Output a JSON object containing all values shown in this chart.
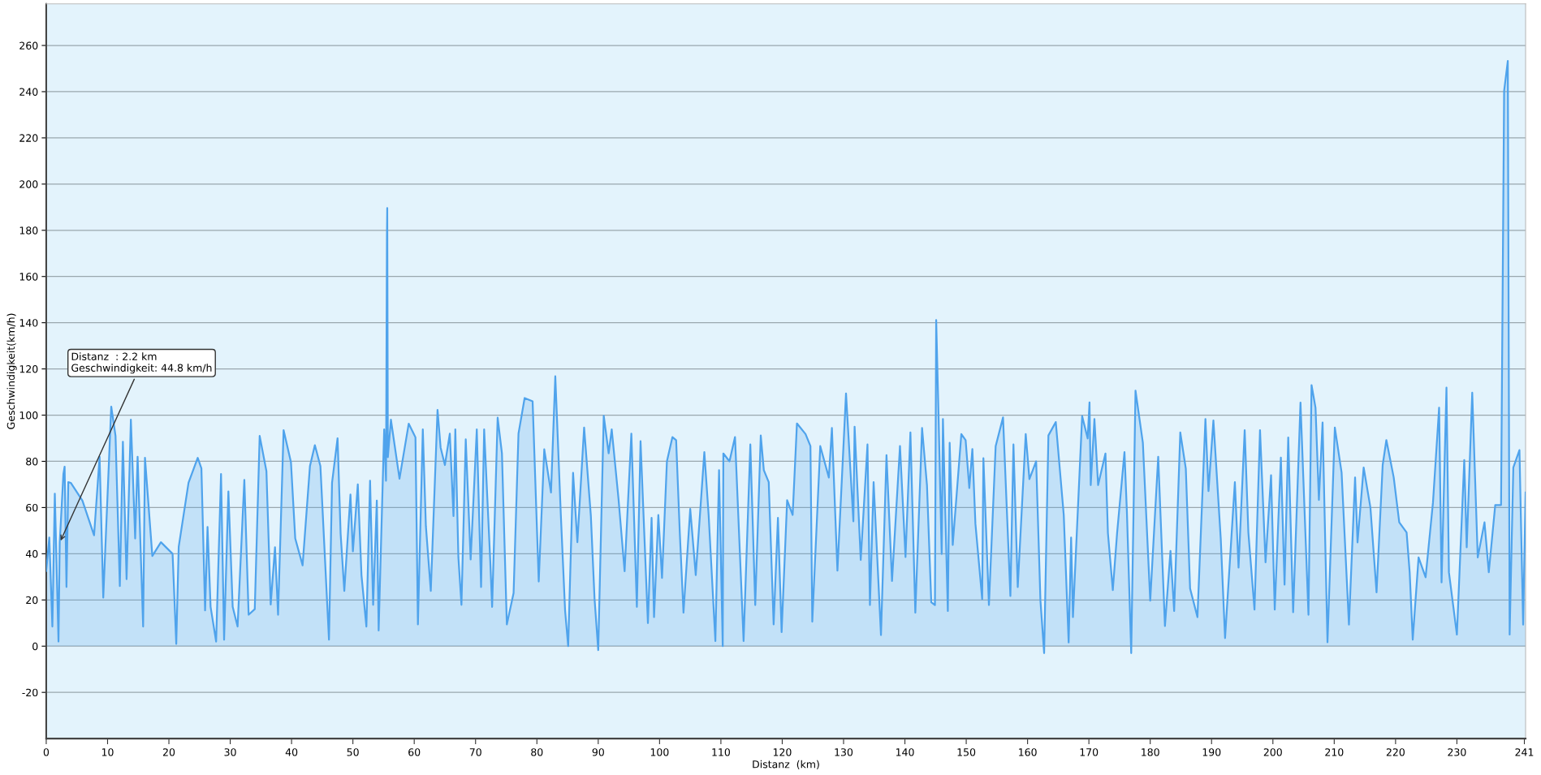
{
  "chart_data": {
    "type": "area",
    "xlabel": "Distanz  (km)",
    "ylabel": "Geschwindigkeit(km/h)",
    "xlim": [
      0,
      241.2
    ],
    "xticks": [
      0,
      10,
      20,
      30,
      40,
      50,
      60,
      70,
      80,
      90,
      100,
      110,
      120,
      130,
      140,
      150,
      160,
      170,
      180,
      190,
      200,
      210,
      220,
      230,
      241
    ],
    "ylim": [
      -40,
      278
    ],
    "yticks": [
      -20,
      0,
      20,
      40,
      60,
      80,
      100,
      120,
      140,
      160,
      180,
      200,
      220,
      240,
      260
    ],
    "grid": "y",
    "annotations": [
      {
        "text": "Distanz  : 2.2 km\nGeschwindigkeit: 44.8 km/h",
        "x": 2.2,
        "y": 44.8
      }
    ],
    "series": [
      {
        "color": "#4fa3ec",
        "x": [
          0,
          0.5,
          1.0,
          1.4,
          2.0,
          2.2,
          2.8,
          3.0,
          3.3,
          3.6,
          4.0,
          5.9,
          7.8,
          8.7,
          9.3,
          10.6,
          11.3,
          12.0,
          12.5,
          13.1,
          13.8,
          14.5,
          14.9,
          15.8,
          16.1,
          17.3,
          18.7,
          20.6,
          21.2,
          21.6,
          23.2,
          24.7,
          25.3,
          25.9,
          26.3,
          26.8,
          27.7,
          28.5,
          29.0,
          29.7,
          30.4,
          31.2,
          32.3,
          33.0,
          34.0,
          34.8,
          35.9,
          36.6,
          37.3,
          37.8,
          38.7,
          39.9,
          40.6,
          41.8,
          43.0,
          43.8,
          44.7,
          46.1,
          46.6,
          47.5,
          48.0,
          48.6,
          49.6,
          50.0,
          50.8,
          51.4,
          52.2,
          52.8,
          53.3,
          53.9,
          54.2,
          55.1,
          55.4,
          55.55,
          55.6,
          55.7,
          56.2,
          57.6,
          59.1,
          60.2,
          60.6,
          61.4,
          61.9,
          62.7,
          63.8,
          64.3,
          65.0,
          65.8,
          66.4,
          66.7,
          67.2,
          67.7,
          68.4,
          69.2,
          70.2,
          70.9,
          71.4,
          72.4,
          72.7,
          73.6,
          74.3,
          75.1,
          76.2,
          77.0,
          78.0,
          79.3,
          80.3,
          81.2,
          82.3,
          83.0,
          83.9,
          84.6,
          85.1,
          85.9,
          86.6,
          87.7,
          88.8,
          89.4,
          90.0,
          90.9,
          91.7,
          92.2,
          93.3,
          94.3,
          95.4,
          96.3,
          96.9,
          98.1,
          98.7,
          99.1,
          99.8,
          100.4,
          101.2,
          102.1,
          102.7,
          103.3,
          103.9,
          105.0,
          105.9,
          107.3,
          108.0,
          109.1,
          109.7,
          110.3,
          110.4,
          111.4,
          112.3,
          113.7,
          114.8,
          115.6,
          116.5,
          117.0,
          117.8,
          118.6,
          119.3,
          119.9,
          120.8,
          121.7,
          122.4,
          123.8,
          124.6,
          124.9,
          126.2,
          127.6,
          128.1,
          129.0,
          130.4,
          131.6,
          131.8,
          132.8,
          133.9,
          134.3,
          134.9,
          136.1,
          137.0,
          137.9,
          139.2,
          140.1,
          140.9,
          141.7,
          142.8,
          143.6,
          144.3,
          144.9,
          145.1,
          145.5,
          146.0,
          146.2,
          147.0,
          147.3,
          147.8,
          149.2,
          149.9,
          150.5,
          151.0,
          151.5,
          152.6,
          152.8,
          153.7,
          154.8,
          156.0,
          157.2,
          157.7,
          158.4,
          159.7,
          160.3,
          161.4,
          162.1,
          162.7,
          163.4,
          164.6,
          165.9,
          166.7,
          167.1,
          167.4,
          168.9,
          169.8,
          170.1,
          170.3,
          170.9,
          171.5,
          172.7,
          173.1,
          173.9,
          174.6,
          175.8,
          176.2,
          176.9,
          177.6,
          178.8,
          180.0,
          181.3,
          182.4,
          183.3,
          183.9,
          184.9,
          185.8,
          186.5,
          187.7,
          189.0,
          189.5,
          190.3,
          191.5,
          192.2,
          193.8,
          194.4,
          195.4,
          196.0,
          197.0,
          197.9,
          198.8,
          199.7,
          200.3,
          201.3,
          201.9,
          202.5,
          203.3,
          204.5,
          205.8,
          206.3,
          206.95,
          207.5,
          208.1,
          208.9,
          210.1,
          211.2,
          212.4,
          213.4,
          213.8,
          214.8,
          215.9,
          216.9,
          217.9,
          218.5,
          219.7,
          220.6,
          221.8,
          222.3,
          222.8,
          223.75,
          224.9,
          226.1,
          227.1,
          227.5,
          228.3,
          228.7,
          230.0,
          231.2,
          231.6,
          232.5,
          233.4,
          234.5,
          235.2,
          236.25,
          237.2,
          237.7,
          238.3,
          238.6,
          239.2,
          240.2,
          240.8,
          241.2
        ],
        "values": [
          32.6,
          47,
          8.5,
          66,
          2,
          44.8,
          74.5,
          77.7,
          25.6,
          71,
          70.7,
          63,
          48,
          82,
          21,
          103.7,
          91,
          26,
          88.5,
          29,
          98,
          46.6,
          82,
          8.5,
          81.5,
          39,
          45,
          40,
          1,
          43,
          70.7,
          81.5,
          77,
          15.5,
          51.6,
          17,
          2,
          74.5,
          2.8,
          67,
          17,
          8.5,
          72,
          13.6,
          16,
          91,
          75.8,
          18,
          42.8,
          13.6,
          93.5,
          79.6,
          46.6,
          35,
          78,
          87,
          78,
          2.8,
          70.7,
          90,
          48.6,
          23.9,
          65.6,
          41,
          70,
          30.7,
          8.5,
          71.6,
          17.9,
          63,
          6.8,
          93.8,
          71.6,
          177,
          189.6,
          81.8,
          98,
          72.5,
          96.3,
          90.4,
          9.4,
          93.8,
          52,
          23.9,
          102.3,
          86,
          78.4,
          92,
          56.3,
          93.8,
          38.4,
          17.9,
          89.5,
          37.5,
          93.8,
          25.6,
          93.8,
          36.7,
          17,
          98.9,
          83.5,
          9.4,
          23,
          92,
          107.4,
          106,
          28,
          85.2,
          66.5,
          116.8,
          57,
          15.3,
          0,
          75,
          45,
          94.6,
          56.3,
          20.5,
          -1.7,
          99.7,
          83.5,
          93.8,
          64,
          32.4,
          92,
          17,
          88.7,
          10,
          55.5,
          12.6,
          56.8,
          29.5,
          80,
          90.5,
          89.2,
          49,
          14.5,
          59.4,
          30.8,
          84,
          56.8,
          2.2,
          76.2,
          0,
          83.4,
          80,
          90.5,
          2.2,
          87.3,
          17.8,
          91.2,
          76.2,
          71,
          9.4,
          55.5,
          6.1,
          63.2,
          56.8,
          96.4,
          91.8,
          86.6,
          10.6,
          86.6,
          73,
          94.4,
          32.7,
          109.4,
          54,
          95,
          37.3,
          87.3,
          17.8,
          71,
          4.8,
          82.7,
          28.2,
          86.6,
          38.6,
          92.5,
          14.5,
          94.4,
          69.7,
          19,
          17.8,
          141.2,
          98.3,
          39.9,
          98.3,
          15.2,
          88,
          43.8,
          91.8,
          89.2,
          68.4,
          85.3,
          52.9,
          20.4,
          81.4,
          17.8,
          86.6,
          99,
          21.7,
          87.3,
          25.6,
          91.8,
          72.3,
          80,
          19.7,
          -3,
          91.2,
          97,
          56.8,
          1.6,
          47,
          12.6,
          99.6,
          89.9,
          105.5,
          69.7,
          98.3,
          69.7,
          83.4,
          49,
          24.3,
          49,
          84,
          58,
          -3,
          110.6,
          88,
          19.7,
          82,
          8.7,
          41.2,
          15.2,
          92.5,
          76.9,
          24.9,
          12.6,
          98.3,
          67.1,
          97.7,
          46.4,
          3.5,
          71,
          34,
          93.5,
          49.2,
          15.8,
          93.5,
          36.3,
          74,
          15.8,
          81.6,
          26.6,
          90.3,
          14.7,
          105.4,
          13.6,
          113,
          103.2,
          63.3,
          96.8,
          1.7,
          94.6,
          75.2,
          9.3,
          73,
          44.9,
          77.3,
          60,
          23.3,
          78.4,
          89.2,
          73,
          53.6,
          49.2,
          32,
          2.8,
          38.4,
          29.8,
          62.2,
          103.2,
          27.6,
          111.9,
          32,
          5,
          80.6,
          42.8,
          109.7,
          38.4,
          53.6,
          32,
          61.1,
          61.1,
          240.4,
          253.3,
          5,
          77.3,
          84.9,
          9.3,
          66.5
        ]
      }
    ]
  }
}
